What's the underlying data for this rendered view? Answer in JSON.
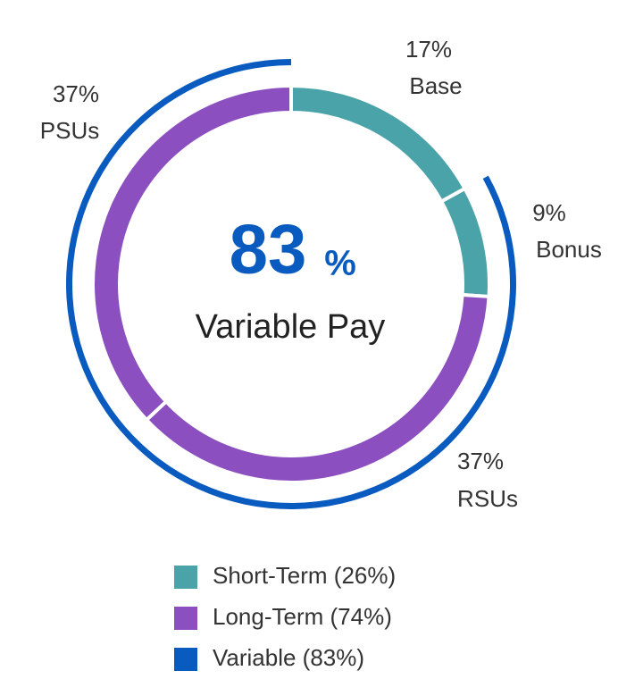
{
  "chart_data": {
    "type": "donut",
    "categories": [
      "Base",
      "Bonus",
      "RSUs",
      "PSUs"
    ],
    "values": [
      17,
      9,
      37,
      37
    ],
    "value_labels": [
      "17%",
      "9%",
      "37%",
      "37%"
    ],
    "colors": [
      "#4aa3a8",
      "#4aa3a8",
      "#8b4fbf",
      "#8b4fbf"
    ],
    "center_value": 83,
    "center_unit": "%",
    "center_label": "Variable Pay",
    "outer_arc": {
      "value": 83,
      "color": "#0a5bbf"
    },
    "legend": [
      {
        "name": "Short-Term (26%)",
        "color": "#4aa3a8"
      },
      {
        "name": "Long-Term (74%)",
        "color": "#8b4fbf"
      },
      {
        "name": "Variable (83%)",
        "color": "#0a5bbf"
      }
    ]
  }
}
